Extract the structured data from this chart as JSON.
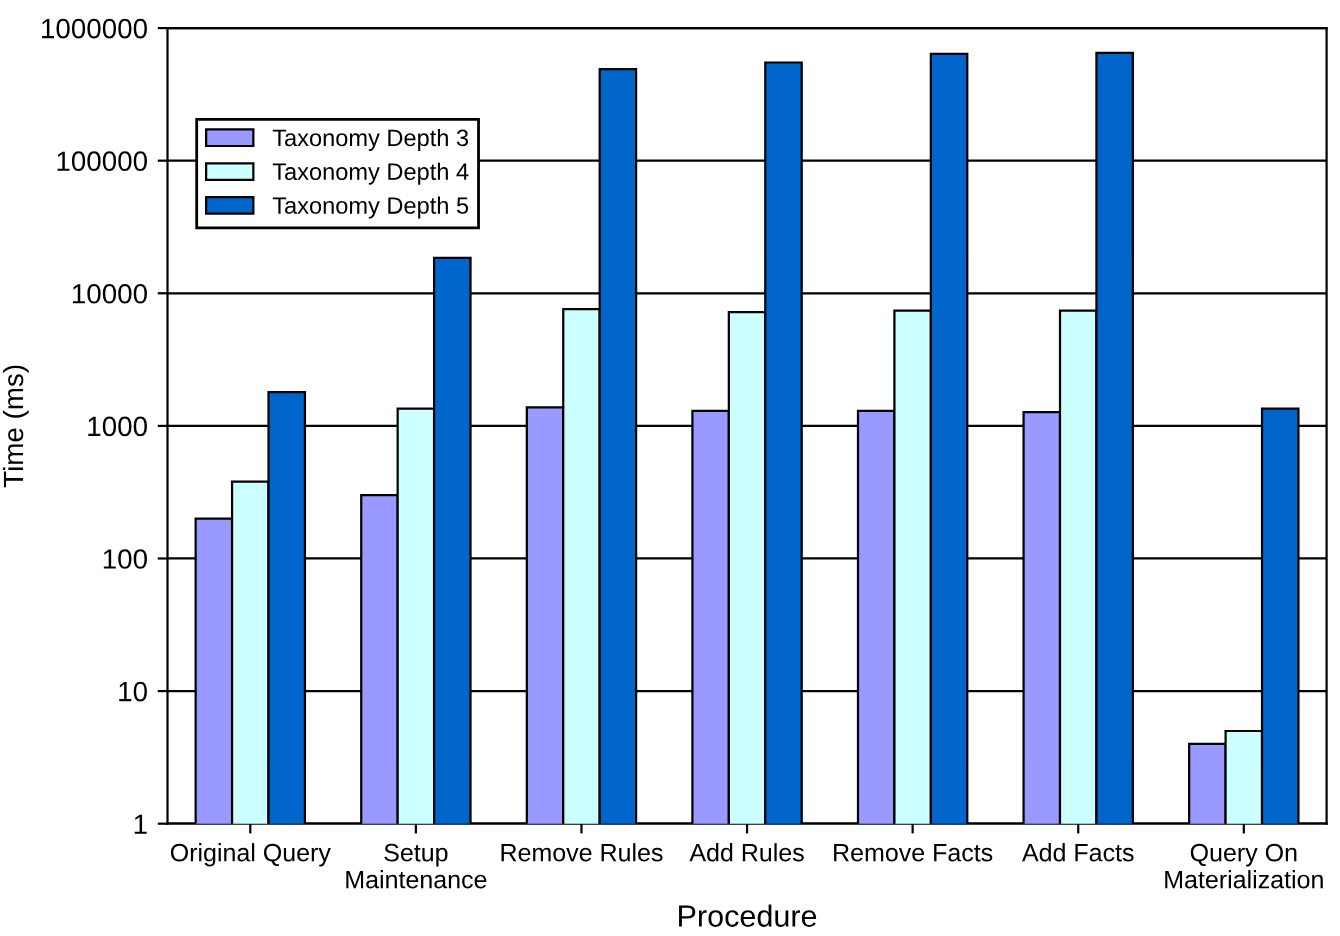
{
  "chart_data": {
    "type": "bar",
    "xlabel": "Procedure",
    "ylabel": "Time (ms)",
    "categories": [
      "Original Query",
      "Setup\nMaintenance",
      "Remove Rules",
      "Add Rules",
      "Remove Facts",
      "Add Facts",
      "Query On\nMaterialization"
    ],
    "series": [
      {
        "name": "Taxonomy Depth 3",
        "color": "#9999ff",
        "values": [
          200,
          300,
          1380,
          1300,
          1300,
          1270,
          4
        ]
      },
      {
        "name": "Taxonomy Depth 4",
        "color": "#ccffff",
        "values": [
          380,
          1350,
          7600,
          7200,
          7400,
          7400,
          5
        ]
      },
      {
        "name": "Taxonomy Depth 5",
        "color": "#0066cc",
        "values": [
          1800,
          18500,
          490000,
          550000,
          640000,
          650000,
          1350
        ]
      }
    ],
    "log": "y",
    "ylim": [
      1,
      1000000
    ],
    "yticks": [
      1,
      10,
      100,
      1000,
      10000,
      100000,
      1000000
    ],
    "grid": "y",
    "legend": "top left"
  }
}
